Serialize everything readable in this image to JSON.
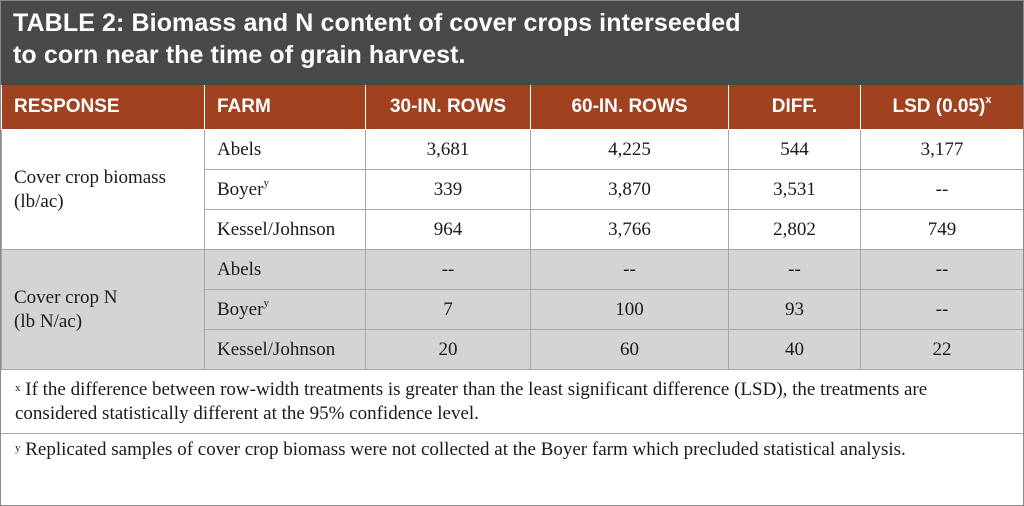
{
  "title": {
    "line1": "TABLE 2: Biomass and N content of cover crops interseeded",
    "line2": "to corn near the time of grain harvest."
  },
  "headers": {
    "response": "RESPONSE",
    "farm": "FARM",
    "rows30": "30-IN. ROWS",
    "rows60": "60-IN. ROWS",
    "diff": "DIFF.",
    "lsd": "LSD (0.05)",
    "lsd_sup": "x"
  },
  "groups": [
    {
      "response_line1": "Cover crop biomass",
      "response_line2": "(lb/ac)",
      "rows": [
        {
          "farm": "Abels",
          "farm_sup": "",
          "rows30": "3,681",
          "rows60": "4,225",
          "diff": "544",
          "lsd": "3,177"
        },
        {
          "farm": "Boyer",
          "farm_sup": "y",
          "rows30": "339",
          "rows60": "3,870",
          "diff": "3,531",
          "lsd": "--"
        },
        {
          "farm": "Kessel/Johnson",
          "farm_sup": "",
          "rows30": "964",
          "rows60": "3,766",
          "diff": "2,802",
          "lsd": "749"
        }
      ]
    },
    {
      "response_line1": "Cover crop N",
      "response_line2": "(lb N/ac)",
      "rows": [
        {
          "farm": "Abels",
          "farm_sup": "",
          "rows30": "--",
          "rows60": "--",
          "diff": "--",
          "lsd": "--"
        },
        {
          "farm": "Boyer",
          "farm_sup": "y",
          "rows30": "7",
          "rows60": "100",
          "diff": "93",
          "lsd": "--"
        },
        {
          "farm": "Kessel/Johnson",
          "farm_sup": "",
          "rows30": "20",
          "rows60": "60",
          "diff": "40",
          "lsd": "22"
        }
      ]
    }
  ],
  "footnotes": {
    "x_mark": "x",
    "x_text": " If the difference between row-width treatments is greater than the least significant difference (LSD), the treatments are considered statistically different at the 95% confidence level.",
    "y_mark": "y",
    "y_text": " Replicated samples of cover crop biomass were not collected at the Boyer farm which precluded statistical analysis."
  },
  "colors": {
    "title_bg": "#494949",
    "header_bg": "#a0411f",
    "shaded_group_bg": "#d4d4d4"
  }
}
